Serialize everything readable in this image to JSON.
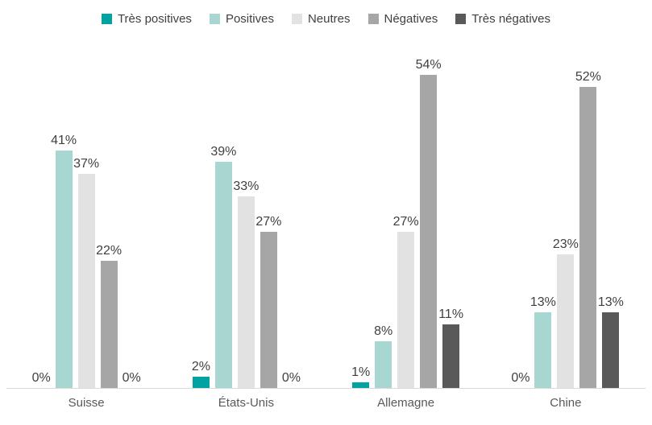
{
  "chart_data": {
    "type": "bar",
    "title": "",
    "categories": [
      "Suisse",
      "États-Unis",
      "Allemagne",
      "Chine"
    ],
    "series": [
      {
        "name": "Très positives",
        "color": "#00A2A2",
        "values": [
          0,
          2,
          1,
          0
        ]
      },
      {
        "name": "Positives",
        "color": "#A8D7D1",
        "values": [
          41,
          39,
          8,
          13
        ]
      },
      {
        "name": "Neutres",
        "color": "#E2E2E2",
        "values": [
          37,
          33,
          27,
          23
        ]
      },
      {
        "name": "Négatives",
        "color": "#A6A6A6",
        "values": [
          22,
          27,
          54,
          52
        ]
      },
      {
        "name": "Très négatives",
        "color": "#595959",
        "values": [
          0,
          0,
          11,
          13
        ]
      }
    ],
    "label_format": "percent",
    "data_labels": true,
    "ylim": [
      0,
      60
    ],
    "grid": false,
    "legend_position": "top",
    "axis_line_color": "#d9d9d9",
    "label_text_color": "#404040"
  }
}
